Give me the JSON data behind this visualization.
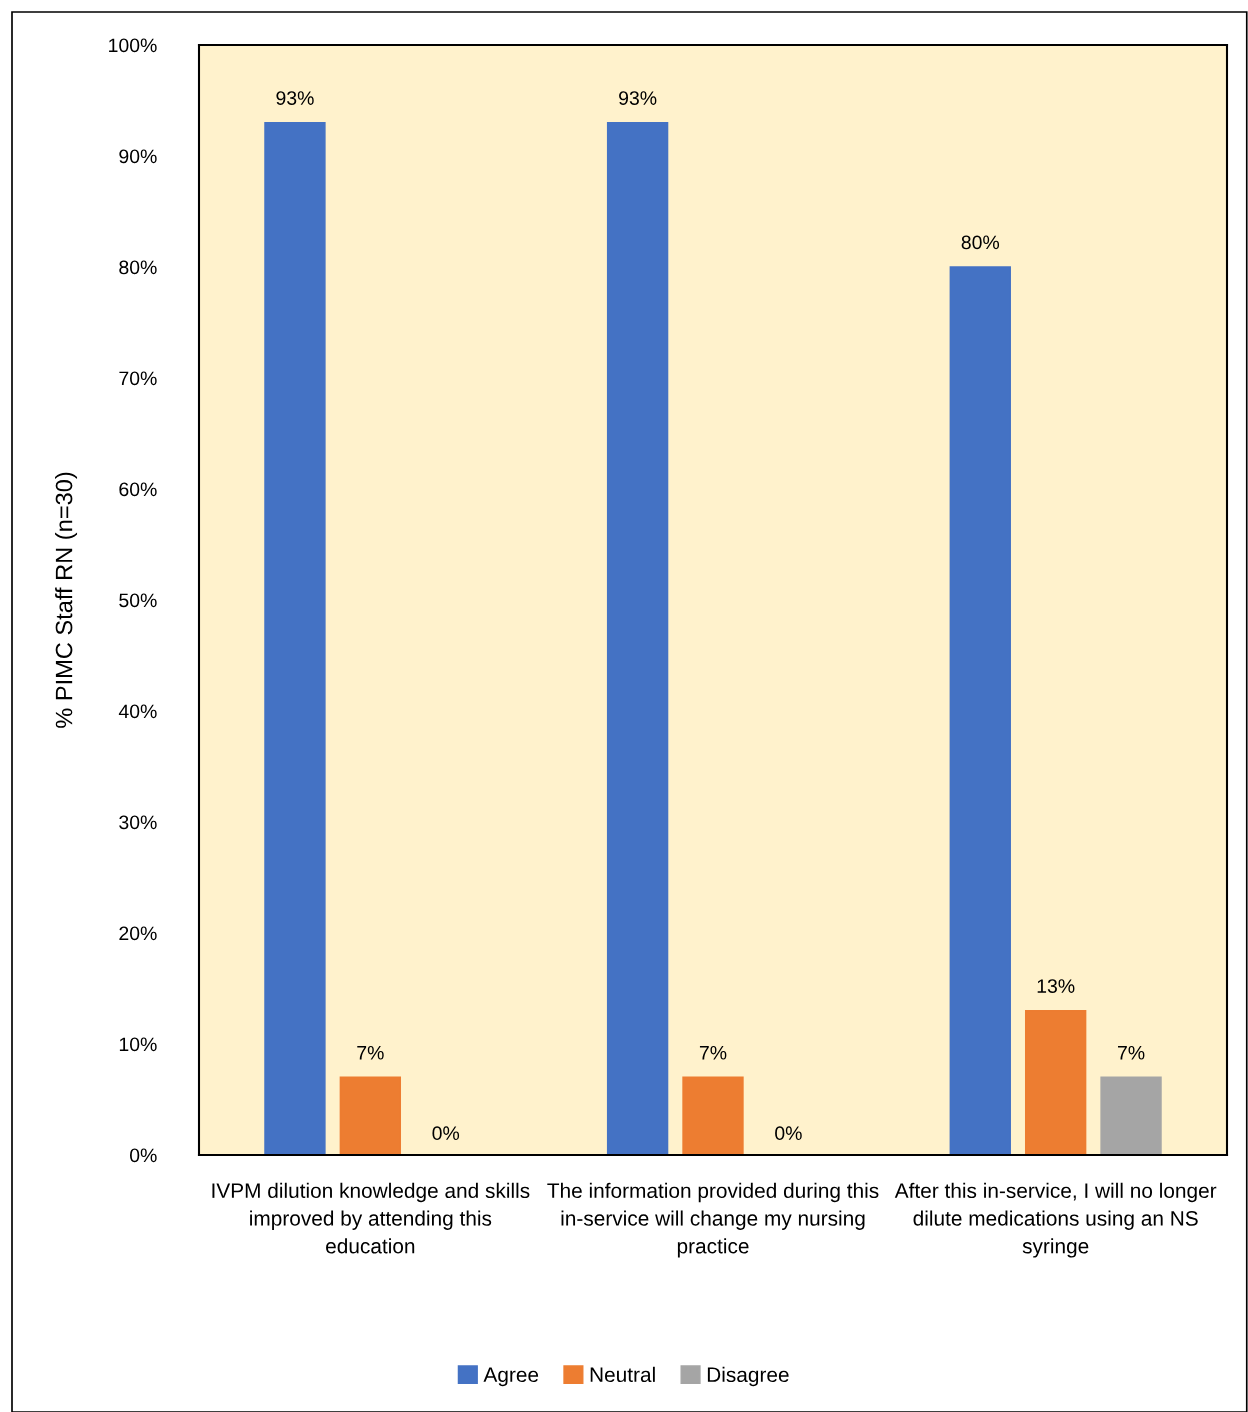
{
  "chart_data": {
    "type": "bar",
    "ylabel": "% PIMC Staff RN (n=30)",
    "categories": [
      "IVPM dilution knowledge and skills improved by attending this education",
      "The information provided during this in-service will change my nursing practice",
      "After this in-service, I will no longer dilute medications using an NS syringe"
    ],
    "series": [
      {
        "name": "Agree",
        "color": "#4472c4",
        "values": [
          93,
          93,
          80
        ],
        "value_labels": [
          "93%",
          "93%",
          "80%"
        ]
      },
      {
        "name": "Neutral",
        "color": "#ed7d31",
        "values": [
          7,
          7,
          13
        ],
        "value_labels": [
          "7%",
          "7%",
          "13%"
        ]
      },
      {
        "name": "Disagree",
        "color": "#a5a5a5",
        "values": [
          0,
          0,
          7
        ],
        "value_labels": [
          "0%",
          "0%",
          "7%"
        ]
      }
    ],
    "ylim": [
      0,
      100
    ],
    "yticks": [
      {
        "value": 0,
        "label": "0%"
      },
      {
        "value": 10,
        "label": "10%"
      },
      {
        "value": 20,
        "label": "20%"
      },
      {
        "value": 30,
        "label": "30%"
      },
      {
        "value": 40,
        "label": "40%"
      },
      {
        "value": 50,
        "label": "50%"
      },
      {
        "value": 60,
        "label": "60%"
      },
      {
        "value": 70,
        "label": "70%"
      },
      {
        "value": 80,
        "label": "80%"
      },
      {
        "value": 90,
        "label": "90%"
      },
      {
        "value": 100,
        "label": "100%"
      }
    ],
    "grid": false,
    "legend": "bottom"
  }
}
